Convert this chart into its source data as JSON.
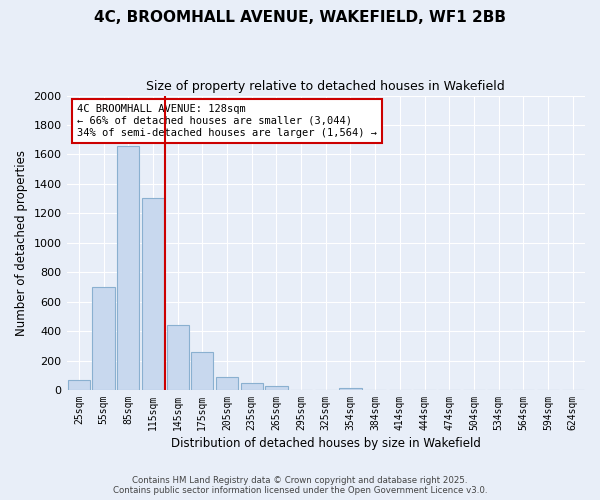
{
  "title": "4C, BROOMHALL AVENUE, WAKEFIELD, WF1 2BB",
  "subtitle": "Size of property relative to detached houses in Wakefield",
  "xlabel": "Distribution of detached houses by size in Wakefield",
  "ylabel": "Number of detached properties",
  "bar_color": "#c8d8ee",
  "bar_edge_color": "#8ab0d0",
  "background_color": "#e8eef8",
  "grid_color": "white",
  "categories": [
    "25sqm",
    "55sqm",
    "85sqm",
    "115sqm",
    "145sqm",
    "175sqm",
    "205sqm",
    "235sqm",
    "265sqm",
    "295sqm",
    "325sqm",
    "354sqm",
    "384sqm",
    "414sqm",
    "444sqm",
    "474sqm",
    "504sqm",
    "534sqm",
    "564sqm",
    "594sqm",
    "624sqm"
  ],
  "values": [
    65,
    700,
    1655,
    1305,
    440,
    255,
    90,
    50,
    30,
    0,
    0,
    10,
    0,
    0,
    0,
    0,
    0,
    0,
    0,
    0,
    0
  ],
  "ylim": [
    0,
    2000
  ],
  "yticks": [
    0,
    200,
    400,
    600,
    800,
    1000,
    1200,
    1400,
    1600,
    1800,
    2000
  ],
  "property_line_x": 3.5,
  "property_line_color": "#cc0000",
  "annotation_title": "4C BROOMHALL AVENUE: 128sqm",
  "annotation_line1": "← 66% of detached houses are smaller (3,044)",
  "annotation_line2": "34% of semi-detached houses are larger (1,564) →",
  "annotation_box_color": "white",
  "annotation_box_edge": "#cc0000",
  "footer_line1": "Contains HM Land Registry data © Crown copyright and database right 2025.",
  "footer_line2": "Contains public sector information licensed under the Open Government Licence v3.0."
}
